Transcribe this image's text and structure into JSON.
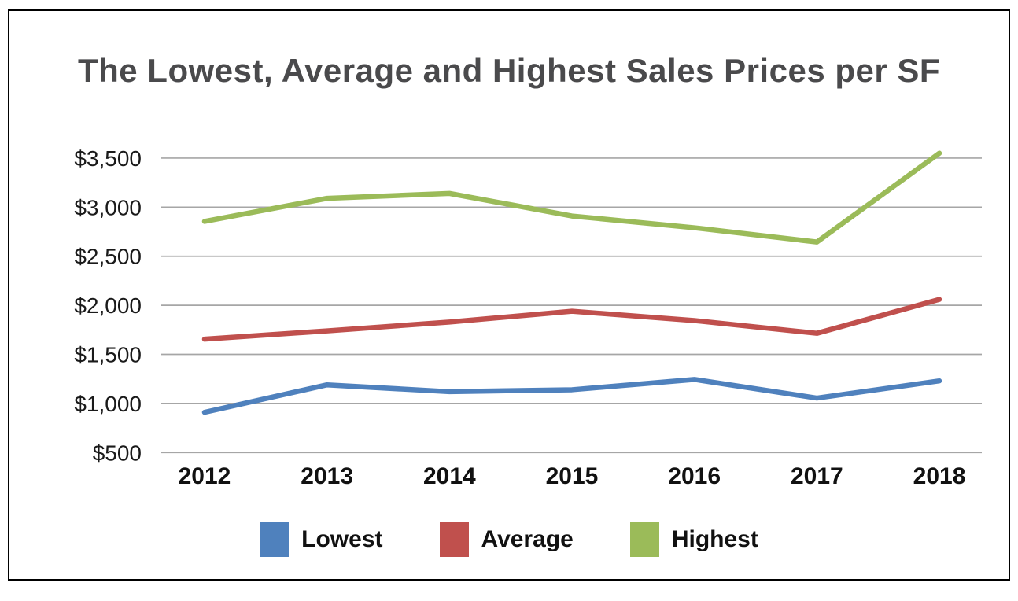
{
  "chart_data": {
    "type": "line",
    "title": "The Lowest, Average and Highest Sales Prices per SF",
    "categories": [
      "2012",
      "2013",
      "2014",
      "2015",
      "2016",
      "2017",
      "2018"
    ],
    "series": [
      {
        "name": "Lowest",
        "color": "#4F81BD",
        "values": [
          910,
          1190,
          1120,
          1140,
          1245,
          1055,
          1230
        ]
      },
      {
        "name": "Average",
        "color": "#C0504D",
        "values": [
          1655,
          1740,
          1830,
          1940,
          1845,
          1715,
          2060
        ]
      },
      {
        "name": "Highest",
        "color": "#9BBB59",
        "values": [
          2855,
          3090,
          3140,
          2910,
          2790,
          2645,
          3550
        ]
      }
    ],
    "y_axis": {
      "min": 500,
      "max": 3500,
      "step": 500,
      "tick_labels": [
        "$500",
        "$1,000",
        "$1,500",
        "$2,000",
        "$2,500",
        "$3,000",
        "$3,500"
      ]
    },
    "xlabel": "",
    "ylabel": "",
    "grid": true,
    "gridline_color": "#A6A6A6",
    "legend_position": "bottom"
  }
}
